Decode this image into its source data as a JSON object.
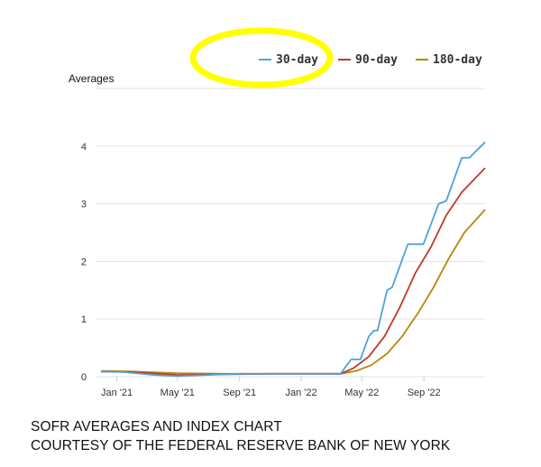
{
  "chart_data": {
    "type": "line",
    "title": "",
    "ylabel": "Averages",
    "xlabel": "",
    "x_ticks": [
      "Jan '21",
      "May '21",
      "Sep '21",
      "Jan '22",
      "May '22",
      "Sep '22"
    ],
    "y_ticks": [
      "0",
      "1",
      "2",
      "3",
      "4"
    ],
    "ylim": [
      0,
      5
    ],
    "grid": "horizontal",
    "legend_position": "top-right",
    "series": [
      {
        "name": "30-day",
        "color": "#4da3d9",
        "points": [
          [
            "2020-12-01",
            0.09
          ],
          [
            "2021-01-15",
            0.08
          ],
          [
            "2021-03-15",
            0.03
          ],
          [
            "2021-05-01",
            0.01
          ],
          [
            "2021-07-01",
            0.03
          ],
          [
            "2021-09-01",
            0.05
          ],
          [
            "2021-11-01",
            0.05
          ],
          [
            "2022-01-01",
            0.05
          ],
          [
            "2022-03-01",
            0.05
          ],
          [
            "2022-03-20",
            0.05
          ],
          [
            "2022-04-01",
            0.2
          ],
          [
            "2022-04-10",
            0.3
          ],
          [
            "2022-04-28",
            0.3
          ],
          [
            "2022-05-15",
            0.7
          ],
          [
            "2022-05-25",
            0.8
          ],
          [
            "2022-06-01",
            0.8
          ],
          [
            "2022-06-20",
            1.5
          ],
          [
            "2022-06-30",
            1.55
          ],
          [
            "2022-07-31",
            2.3
          ],
          [
            "2022-08-10",
            2.3
          ],
          [
            "2022-08-31",
            2.3
          ],
          [
            "2022-09-30",
            3.0
          ],
          [
            "2022-10-15",
            3.05
          ],
          [
            "2022-11-15",
            3.8
          ],
          [
            "2022-11-30",
            3.8
          ],
          [
            "2022-12-31",
            4.07
          ]
        ]
      },
      {
        "name": "90-day",
        "color": "#c0392b",
        "points": [
          [
            "2020-12-01",
            0.09
          ],
          [
            "2021-02-01",
            0.08
          ],
          [
            "2021-05-01",
            0.03
          ],
          [
            "2021-08-01",
            0.04
          ],
          [
            "2021-11-01",
            0.05
          ],
          [
            "2022-02-01",
            0.05
          ],
          [
            "2022-03-20",
            0.05
          ],
          [
            "2022-04-15",
            0.15
          ],
          [
            "2022-05-15",
            0.35
          ],
          [
            "2022-06-15",
            0.7
          ],
          [
            "2022-07-15",
            1.2
          ],
          [
            "2022-08-15",
            1.8
          ],
          [
            "2022-09-15",
            2.25
          ],
          [
            "2022-10-15",
            2.8
          ],
          [
            "2022-11-15",
            3.2
          ],
          [
            "2022-12-31",
            3.62
          ]
        ]
      },
      {
        "name": "180-day",
        "color": "#b8860b",
        "points": [
          [
            "2020-12-01",
            0.1
          ],
          [
            "2021-02-01",
            0.09
          ],
          [
            "2021-05-01",
            0.06
          ],
          [
            "2021-08-01",
            0.05
          ],
          [
            "2021-11-01",
            0.05
          ],
          [
            "2022-02-01",
            0.05
          ],
          [
            "2022-03-20",
            0.05
          ],
          [
            "2022-04-20",
            0.1
          ],
          [
            "2022-05-20",
            0.2
          ],
          [
            "2022-06-20",
            0.4
          ],
          [
            "2022-07-20",
            0.7
          ],
          [
            "2022-08-20",
            1.1
          ],
          [
            "2022-09-20",
            1.55
          ],
          [
            "2022-10-20",
            2.05
          ],
          [
            "2022-11-20",
            2.5
          ],
          [
            "2022-12-31",
            2.9
          ]
        ]
      }
    ]
  },
  "caption": {
    "line1": "SOFR AVERAGES AND INDEX CHART",
    "line2": "COURTESY OF THE FEDERAL RESERVE BANK OF NEW YORK"
  },
  "annotation": {
    "type": "highlight-ellipse",
    "target": "legend-item-30-day",
    "color": "#ffff00"
  }
}
